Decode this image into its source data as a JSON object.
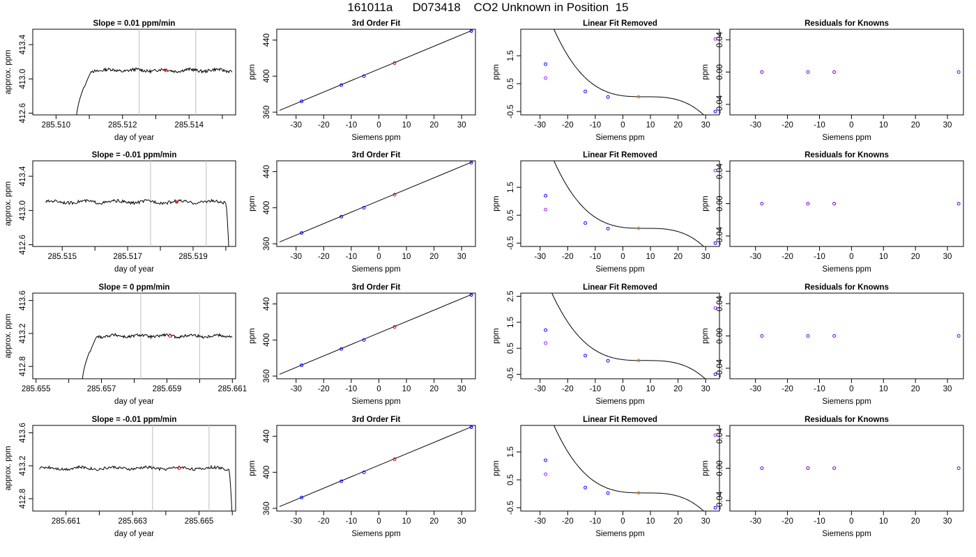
{
  "title": "161011a      D073418    CO2 Unknown in Position  15",
  "colors": {
    "axis": "#000000",
    "trace": "#000000",
    "marker_line": "#c8c8c8",
    "known_point": "#0000ff",
    "unknown_point": "#ff0000",
    "unknown_fit_point": "#ff7f00",
    "original_point": "#a020f0",
    "purple_point": "#6a00d8"
  },
  "chart_data": [
    {
      "type": "line",
      "row": 1,
      "title": "Slope =  0.01  ppm/min",
      "xlabel": "day of year",
      "ylabel": "approx. ppm",
      "xlim": [
        285.5093,
        285.5154
      ],
      "ylim": [
        412.58,
        413.58
      ],
      "xticks": [
        "285.510",
        "285.512",
        "285.514"
      ],
      "yticks": [
        "412.6",
        "413.0",
        "413.4"
      ],
      "marker_lines": [
        285.5125,
        285.5142
      ],
      "point": [
        285.5133,
        413.1
      ],
      "trace": {
        "x_start": 285.5106,
        "x_end": 285.5153,
        "level": 413.1,
        "rise": "start"
      }
    },
    {
      "type": "scatter",
      "row": 1,
      "title": "3rd Order Fit",
      "xlabel": "Siemens ppm",
      "ylabel": "ppm",
      "xlim": [
        -37,
        35
      ],
      "ylim": [
        357,
        452
      ],
      "xticks": [
        "-30",
        "-20",
        "-10",
        "0",
        "10",
        "20",
        "30"
      ],
      "yticks": [
        "360",
        "400",
        "440"
      ],
      "fit_line": [
        [
          -36,
          362
        ],
        [
          34,
          451
        ]
      ],
      "knowns": [
        [
          -28,
          372
        ],
        [
          -13.6,
          390
        ],
        [
          -5.4,
          400
        ],
        [
          33.5,
          450
        ]
      ],
      "unknown": [
        5.7,
        414.5
      ]
    },
    {
      "type": "scatter",
      "row": 1,
      "title": "Linear Fit Removed",
      "xlabel": "Siemens ppm",
      "ylabel": "ppm",
      "xlim": [
        -37,
        35
      ],
      "ylim": [
        -0.62,
        2.45
      ],
      "xticks": [
        "-30",
        "-20",
        "-10",
        "0",
        "10",
        "20",
        "30"
      ],
      "yticks": [
        "-0.5",
        "0.5",
        "1.5"
      ],
      "knowns": [
        [
          -28,
          1.2
        ],
        [
          -13.6,
          0.22
        ],
        [
          -5.4,
          0.02
        ],
        [
          33.5,
          -0.5
        ]
      ],
      "unknown": [
        5.7,
        0.03
      ],
      "originals": [
        [
          -28,
          0.7
        ],
        [
          33.5,
          2.1
        ]
      ]
    },
    {
      "type": "scatter",
      "row": 1,
      "title": "Residuals for Knowns",
      "xlabel": "Siemens ppm",
      "ylabel": "ppm",
      "xlim": [
        -38,
        35
      ],
      "ylim": [
        -0.053,
        0.053
      ],
      "xticks": [
        "-30",
        "-20",
        "-10",
        "0",
        "10",
        "20",
        "30"
      ],
      "yticks": [
        "-0.04",
        "0.00",
        "0.04"
      ],
      "points": [
        [
          -28,
          0
        ],
        [
          -13.6,
          0
        ],
        [
          -5.4,
          0
        ],
        [
          33.5,
          0
        ]
      ]
    },
    {
      "type": "line",
      "row": 2,
      "title": "Slope =  -0.01  ppm/min",
      "xlabel": "day of year",
      "ylabel": "approx. ppm",
      "xlim": [
        285.5141,
        285.5203
      ],
      "ylim": [
        412.58,
        413.58
      ],
      "xticks": [
        "285.515",
        "285.517",
        "285.519"
      ],
      "yticks": [
        "412.6",
        "413.0",
        "413.4"
      ],
      "marker_lines": [
        285.5177,
        285.5194
      ],
      "point": [
        285.5185,
        413.1
      ],
      "trace": {
        "x_start": 285.5145,
        "x_end": 285.5201,
        "level": 413.1,
        "rise": "end"
      }
    },
    {
      "type": "scatter",
      "row": 2,
      "title": "3rd Order Fit",
      "xlabel": "Siemens ppm",
      "ylabel": "ppm",
      "xlim": [
        -37,
        35
      ],
      "ylim": [
        357,
        452
      ],
      "xticks": [
        "-30",
        "-20",
        "-10",
        "0",
        "10",
        "20",
        "30"
      ],
      "yticks": [
        "360",
        "400",
        "440"
      ],
      "fit_line": [
        [
          -36,
          362
        ],
        [
          34,
          451
        ]
      ],
      "knowns": [
        [
          -28,
          372
        ],
        [
          -13.6,
          390
        ],
        [
          -5.4,
          400
        ],
        [
          33.5,
          450
        ]
      ],
      "unknown": [
        5.7,
        414.5
      ]
    },
    {
      "type": "scatter",
      "row": 2,
      "title": "Linear Fit Removed",
      "xlabel": "Siemens ppm",
      "ylabel": "ppm",
      "xlim": [
        -37,
        35
      ],
      "ylim": [
        -0.62,
        2.45
      ],
      "xticks": [
        "-30",
        "-20",
        "-10",
        "0",
        "10",
        "20",
        "30"
      ],
      "yticks": [
        "-0.5",
        "0.5",
        "1.5"
      ],
      "knowns": [
        [
          -28,
          1.2
        ],
        [
          -13.6,
          0.22
        ],
        [
          -5.4,
          0.02
        ],
        [
          33.5,
          -0.5
        ]
      ],
      "unknown": [
        5.7,
        0.03
      ],
      "originals": [
        [
          -28,
          0.7
        ],
        [
          33.5,
          2.1
        ]
      ]
    },
    {
      "type": "scatter",
      "row": 2,
      "title": "Residuals for Knowns",
      "xlabel": "Siemens ppm",
      "ylabel": "ppm",
      "xlim": [
        -38,
        35
      ],
      "ylim": [
        -0.053,
        0.053
      ],
      "xticks": [
        "-30",
        "-20",
        "-10",
        "0",
        "10",
        "20",
        "30"
      ],
      "yticks": [
        "-0.04",
        "0.00",
        "0.04"
      ],
      "points": [
        [
          -28,
          0
        ],
        [
          -13.6,
          0
        ],
        [
          -5.4,
          0
        ],
        [
          33.5,
          0
        ]
      ]
    },
    {
      "type": "line",
      "row": 3,
      "title": "Slope =  0  ppm/min",
      "xlabel": "day of year",
      "ylabel": "approx. ppm",
      "xlim": [
        285.6549,
        285.6611
      ],
      "ylim": [
        412.65,
        413.69
      ],
      "xticks": [
        "285.655",
        "285.657",
        "285.659",
        "285.661"
      ],
      "yticks": [
        "412.8",
        "413.2",
        "413.6"
      ],
      "marker_lines": [
        285.6582,
        285.66
      ],
      "point": [
        285.6591,
        413.17
      ],
      "trace": {
        "x_start": 285.6564,
        "x_end": 285.661,
        "level": 413.17,
        "rise": "start"
      }
    },
    {
      "type": "scatter",
      "row": 3,
      "title": "3rd Order Fit",
      "xlabel": "Siemens ppm",
      "ylabel": "ppm",
      "xlim": [
        -37,
        35
      ],
      "ylim": [
        357,
        452
      ],
      "xticks": [
        "-30",
        "-20",
        "-10",
        "0",
        "10",
        "20",
        "30"
      ],
      "yticks": [
        "360",
        "400",
        "440"
      ],
      "fit_line": [
        [
          -36,
          362
        ],
        [
          34,
          451
        ]
      ],
      "knowns": [
        [
          -28,
          372
        ],
        [
          -13.6,
          390
        ],
        [
          -5.4,
          400
        ],
        [
          33.5,
          450
        ]
      ],
      "unknown": [
        5.7,
        414.5
      ]
    },
    {
      "type": "scatter",
      "row": 3,
      "title": "Linear Fit Removed",
      "xlabel": "Siemens ppm",
      "ylabel": "ppm",
      "xlim": [
        -37,
        35
      ],
      "ylim": [
        -0.67,
        2.62
      ],
      "xticks": [
        "-30",
        "-20",
        "-10",
        "0",
        "10",
        "20",
        "30"
      ],
      "yticks": [
        "-0.5",
        "0.5",
        "1.5",
        "2.5"
      ],
      "knowns": [
        [
          -28,
          1.2
        ],
        [
          -13.6,
          0.22
        ],
        [
          -5.4,
          0.02
        ],
        [
          33.5,
          -0.5
        ]
      ],
      "unknown": [
        5.7,
        0.03
      ],
      "originals": [
        [
          -28,
          0.7
        ],
        [
          33.5,
          2.05
        ]
      ]
    },
    {
      "type": "scatter",
      "row": 3,
      "title": "Residuals for Knowns",
      "xlabel": "Siemens ppm",
      "ylabel": "ppm",
      "xlim": [
        -38,
        35
      ],
      "ylim": [
        -0.053,
        0.053
      ],
      "xticks": [
        "-30",
        "-20",
        "-10",
        "0",
        "10",
        "20",
        "30"
      ],
      "yticks": [
        "-0.04",
        "0.00",
        "0.04"
      ],
      "points": [
        [
          -28,
          0
        ],
        [
          -13.6,
          0
        ],
        [
          -5.4,
          0
        ],
        [
          33.5,
          0
        ]
      ]
    },
    {
      "type": "line",
      "row": 4,
      "title": "Slope =  -0.01  ppm/min",
      "xlabel": "day of year",
      "ylabel": "approx. ppm",
      "xlim": [
        285.66,
        285.6661
      ],
      "ylim": [
        412.65,
        413.69
      ],
      "xticks": [
        "285.661",
        "285.663",
        "285.665"
      ],
      "yticks": [
        "412.8",
        "413.2",
        "413.6"
      ],
      "marker_lines": [
        285.6636,
        285.6653
      ],
      "point": [
        285.6644,
        413.17
      ],
      "trace": {
        "x_start": 285.6602,
        "x_end": 285.666,
        "level": 413.17,
        "rise": "end"
      }
    },
    {
      "type": "scatter",
      "row": 4,
      "title": "3rd Order Fit",
      "xlabel": "Siemens ppm",
      "ylabel": "ppm",
      "xlim": [
        -37,
        35
      ],
      "ylim": [
        357,
        452
      ],
      "xticks": [
        "-30",
        "-20",
        "-10",
        "0",
        "10",
        "20",
        "30"
      ],
      "yticks": [
        "360",
        "400",
        "440"
      ],
      "fit_line": [
        [
          -36,
          362
        ],
        [
          34,
          451
        ]
      ],
      "knowns": [
        [
          -28,
          372
        ],
        [
          -13.6,
          390
        ],
        [
          -5.4,
          400
        ],
        [
          33.5,
          450
        ]
      ],
      "unknown": [
        5.7,
        414.5
      ]
    },
    {
      "type": "scatter",
      "row": 4,
      "title": "Linear Fit Removed",
      "xlabel": "Siemens ppm",
      "ylabel": "ppm",
      "xlim": [
        -37,
        35
      ],
      "ylim": [
        -0.62,
        2.45
      ],
      "xticks": [
        "-30",
        "-20",
        "-10",
        "0",
        "10",
        "20",
        "30"
      ],
      "yticks": [
        "-0.5",
        "0.5",
        "1.5"
      ],
      "knowns": [
        [
          -28,
          1.2
        ],
        [
          -13.6,
          0.22
        ],
        [
          -5.4,
          0.02
        ],
        [
          33.5,
          -0.5
        ]
      ],
      "unknown": [
        5.7,
        0.03
      ],
      "originals": [
        [
          -28,
          0.7
        ],
        [
          33.5,
          2.1
        ]
      ]
    },
    {
      "type": "scatter",
      "row": 4,
      "title": "Residuals for Knowns",
      "xlabel": "Siemens ppm",
      "ylabel": "ppm",
      "xlim": [
        -38,
        35
      ],
      "ylim": [
        -0.053,
        0.053
      ],
      "xticks": [
        "-30",
        "-20",
        "-10",
        "0",
        "10",
        "20",
        "30"
      ],
      "yticks": [
        "-0.04",
        "0.00",
        "0.04"
      ],
      "points": [
        [
          -28,
          0
        ],
        [
          -13.6,
          0
        ],
        [
          -5.4,
          0
        ],
        [
          33.5,
          0
        ]
      ]
    }
  ]
}
